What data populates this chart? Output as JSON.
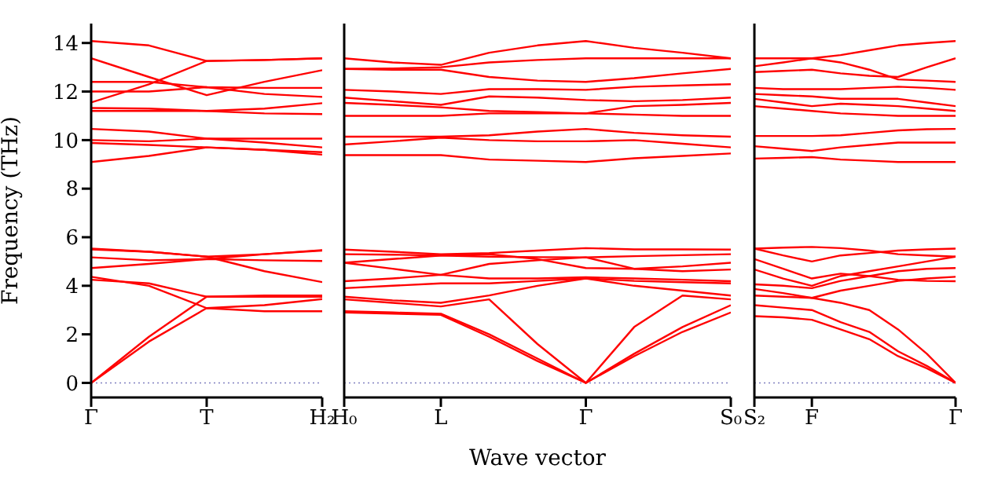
{
  "chart_data": [
    {
      "type": "line",
      "ylabel": "Frequency (THz)",
      "marker": "none",
      "line_style": "solid",
      "categories": [
        "Γ",
        null,
        "T",
        null,
        "H₂"
      ],
      "ylim": [
        -0.6,
        14.8
      ],
      "yticks": [
        0,
        2,
        4,
        6,
        8,
        10,
        12,
        14
      ],
      "ref_lines": [
        {
          "axis": "y",
          "value": 0,
          "color": "#8080c0",
          "line_style": "dotted"
        }
      ],
      "series": [
        {
          "color": "#ff0000",
          "values": [
            0,
            1.7,
            3.08,
            2.95,
            2.95
          ]
        },
        {
          "color": "#ff0000",
          "values": [
            0,
            1.9,
            3.55,
            3.55,
            3.55
          ]
        },
        {
          "color": "#ff0000",
          "values": [
            4.37,
            4.0,
            3.08,
            3.2,
            3.45
          ]
        },
        {
          "color": "#ff0000",
          "values": [
            4.25,
            4.1,
            3.55,
            3.6,
            3.6
          ]
        },
        {
          "color": "#ff0000",
          "values": [
            4.73,
            4.9,
            5.1,
            5.3,
            5.47
          ]
        },
        {
          "color": "#ff0000",
          "values": [
            5.17,
            5.05,
            5.1,
            5.05,
            5.02
          ]
        },
        {
          "color": "#ff0000",
          "values": [
            5.53,
            5.4,
            5.2,
            4.6,
            4.15
          ]
        },
        {
          "color": "#ff0000",
          "values": [
            5.5,
            5.4,
            5.2,
            5.3,
            5.45
          ]
        },
        {
          "color": "#ff0000",
          "values": [
            9.1,
            9.35,
            9.7,
            9.6,
            9.5
          ]
        },
        {
          "color": "#ff0000",
          "values": [
            9.88,
            9.8,
            9.7,
            9.6,
            9.4
          ]
        },
        {
          "color": "#ff0000",
          "values": [
            10.0,
            9.95,
            10.06,
            10.06,
            10.06
          ]
        },
        {
          "color": "#ff0000",
          "values": [
            10.46,
            10.35,
            10.06,
            9.9,
            9.7
          ]
        },
        {
          "color": "#ff0000",
          "values": [
            14.08,
            13.9,
            13.26,
            13.3,
            13.37
          ]
        },
        {
          "color": "#ff0000",
          "values": [
            13.37,
            12.6,
            11.85,
            12.4,
            12.88
          ]
        },
        {
          "color": "#ff0000",
          "values": [
            11.55,
            12.3,
            13.26,
            13.3,
            13.37
          ]
        },
        {
          "color": "#ff0000",
          "values": [
            12.4,
            12.4,
            12.18,
            12.15,
            12.15
          ]
        },
        {
          "color": "#ff0000",
          "values": [
            12.0,
            12.0,
            12.18,
            11.9,
            11.78
          ]
        },
        {
          "color": "#ff0000",
          "values": [
            11.32,
            11.3,
            11.2,
            11.3,
            11.52
          ]
        },
        {
          "color": "#ff0000",
          "values": [
            11.2,
            11.2,
            11.2,
            11.1,
            11.07
          ]
        }
      ]
    },
    {
      "type": "line",
      "xlabel": "Wave vector",
      "marker": "none",
      "line_style": "solid",
      "tick_labels": "x",
      "categories": [
        "H₀",
        null,
        "L",
        null,
        null,
        "Γ",
        null,
        null,
        "S₀"
      ],
      "ylim": [
        -0.6,
        14.8
      ],
      "yticks": [
        0,
        2,
        4,
        6,
        8,
        10,
        12,
        14
      ],
      "ref_lines": [
        {
          "axis": "y",
          "value": 0,
          "color": "#8080c0",
          "line_style": "dotted"
        }
      ],
      "series": [
        {
          "color": "#ff0000",
          "values": [
            2.9,
            2.85,
            2.8,
            1.9,
            0.9,
            0,
            1.1,
            2.1,
            2.9
          ]
        },
        {
          "color": "#ff0000",
          "values": [
            2.95,
            2.9,
            2.85,
            2.0,
            1.0,
            0,
            1.2,
            2.3,
            3.2
          ]
        },
        {
          "color": "#ff0000",
          "values": [
            3.44,
            3.3,
            3.15,
            3.44,
            1.6,
            0,
            2.3,
            3.6,
            3.44
          ]
        },
        {
          "color": "#ff0000",
          "values": [
            5.49,
            5.4,
            5.3,
            5.35,
            5.45,
            5.55,
            5.5,
            5.5,
            5.49
          ]
        },
        {
          "color": "#ff0000",
          "values": [
            5.3,
            5.28,
            5.25,
            5.2,
            5.18,
            5.17,
            5.22,
            5.26,
            5.3
          ]
        },
        {
          "color": "#ff0000",
          "values": [
            4.95,
            5.1,
            5.25,
            5.3,
            5.1,
            4.73,
            4.7,
            4.8,
            4.95
          ]
        },
        {
          "color": "#ff0000",
          "values": [
            4.95,
            4.7,
            4.45,
            4.9,
            5.05,
            5.17,
            4.7,
            4.6,
            4.67
          ]
        },
        {
          "color": "#ff0000",
          "values": [
            4.19,
            4.3,
            4.45,
            4.3,
            4.3,
            4.35,
            4.3,
            4.25,
            4.19
          ]
        },
        {
          "color": "#ff0000",
          "values": [
            3.9,
            4.0,
            4.1,
            4.1,
            4.2,
            4.3,
            4.2,
            4.15,
            4.1
          ]
        },
        {
          "color": "#ff0000",
          "values": [
            3.55,
            3.4,
            3.3,
            3.6,
            4.0,
            4.3,
            4.0,
            3.8,
            3.6
          ]
        },
        {
          "color": "#ff0000",
          "values": [
            13.37,
            13.2,
            13.1,
            13.6,
            13.9,
            14.08,
            13.8,
            13.6,
            13.37
          ]
        },
        {
          "color": "#ff0000",
          "values": [
            12.93,
            12.95,
            13.0,
            13.2,
            13.3,
            13.37,
            13.37,
            13.37,
            13.37
          ]
        },
        {
          "color": "#ff0000",
          "values": [
            12.93,
            12.9,
            12.9,
            12.6,
            12.45,
            12.4,
            12.55,
            12.75,
            12.93
          ]
        },
        {
          "color": "#ff0000",
          "values": [
            12.07,
            12.0,
            11.9,
            12.1,
            12.1,
            12.07,
            12.2,
            12.25,
            12.3
          ]
        },
        {
          "color": "#ff0000",
          "values": [
            11.75,
            11.6,
            11.45,
            11.8,
            11.75,
            11.65,
            11.6,
            11.65,
            11.75
          ]
        },
        {
          "color": "#ff0000",
          "values": [
            11.53,
            11.45,
            11.35,
            11.2,
            11.15,
            11.1,
            11.4,
            11.45,
            11.53
          ]
        },
        {
          "color": "#ff0000",
          "values": [
            11.0,
            11.0,
            11.0,
            11.1,
            11.1,
            11.1,
            11.05,
            11.0,
            11.0
          ]
        },
        {
          "color": "#ff0000",
          "values": [
            10.14,
            10.14,
            10.14,
            10.2,
            10.35,
            10.46,
            10.3,
            10.2,
            10.14
          ]
        },
        {
          "color": "#ff0000",
          "values": [
            9.82,
            9.95,
            10.1,
            10.0,
            9.95,
            9.95,
            10.0,
            9.85,
            9.7
          ]
        },
        {
          "color": "#ff0000",
          "values": [
            9.38,
            9.38,
            9.38,
            9.2,
            9.15,
            9.1,
            9.25,
            9.35,
            9.45
          ]
        }
      ]
    },
    {
      "type": "line",
      "marker": "none",
      "line_style": "solid",
      "tick_labels": "x",
      "categories": [
        "S₂",
        null,
        "F",
        null,
        null,
        null,
        null,
        "Γ"
      ],
      "ylim": [
        -0.6,
        14.8
      ],
      "yticks": [
        0,
        2,
        4,
        6,
        8,
        10,
        12,
        14
      ],
      "ref_lines": [
        {
          "axis": "y",
          "value": 0,
          "color": "#8080c0",
          "line_style": "dotted"
        }
      ],
      "series": [
        {
          "color": "#ff0000",
          "values": [
            2.75,
            2.7,
            2.6,
            2.2,
            1.8,
            1.1,
            0.6,
            0
          ]
        },
        {
          "color": "#ff0000",
          "values": [
            3.2,
            3.1,
            3.0,
            2.5,
            2.1,
            1.3,
            0.7,
            0
          ]
        },
        {
          "color": "#ff0000",
          "values": [
            3.6,
            3.55,
            3.5,
            3.3,
            3.0,
            2.2,
            1.2,
            0
          ]
        },
        {
          "color": "#ff0000",
          "values": [
            3.87,
            3.7,
            3.5,
            3.8,
            4.0,
            4.2,
            4.3,
            4.37
          ]
        },
        {
          "color": "#ff0000",
          "values": [
            4.06,
            4.0,
            3.9,
            4.2,
            4.4,
            4.6,
            4.7,
            4.73
          ]
        },
        {
          "color": "#ff0000",
          "values": [
            4.67,
            4.3,
            4.0,
            4.4,
            4.6,
            4.8,
            5.0,
            5.2
          ]
        },
        {
          "color": "#ff0000",
          "values": [
            5.1,
            4.7,
            4.3,
            4.5,
            4.4,
            4.25,
            4.2,
            4.19
          ]
        },
        {
          "color": "#ff0000",
          "values": [
            5.53,
            5.25,
            5.0,
            5.25,
            5.35,
            5.45,
            5.5,
            5.53
          ]
        },
        {
          "color": "#ff0000",
          "values": [
            5.53,
            5.57,
            5.6,
            5.55,
            5.45,
            5.3,
            5.25,
            5.2
          ]
        },
        {
          "color": "#ff0000",
          "values": [
            13.37,
            13.37,
            13.37,
            13.5,
            13.7,
            13.9,
            14.0,
            14.08
          ]
        },
        {
          "color": "#ff0000",
          "values": [
            13.04,
            13.2,
            13.37,
            13.2,
            12.9,
            12.5,
            12.45,
            12.4
          ]
        },
        {
          "color": "#ff0000",
          "values": [
            12.8,
            12.85,
            12.9,
            12.75,
            12.65,
            12.6,
            13.0,
            13.37
          ]
        },
        {
          "color": "#ff0000",
          "values": [
            12.15,
            12.1,
            12.1,
            12.1,
            12.15,
            12.2,
            12.15,
            12.07
          ]
        },
        {
          "color": "#ff0000",
          "values": [
            11.9,
            11.85,
            11.8,
            11.7,
            11.7,
            11.7,
            11.55,
            11.4
          ]
        },
        {
          "color": "#ff0000",
          "values": [
            11.7,
            11.55,
            11.4,
            11.5,
            11.45,
            11.4,
            11.3,
            11.2
          ]
        },
        {
          "color": "#ff0000",
          "values": [
            11.4,
            11.3,
            11.2,
            11.1,
            11.05,
            11.0,
            11.0,
            11.0
          ]
        },
        {
          "color": "#ff0000",
          "values": [
            10.17,
            10.17,
            10.17,
            10.2,
            10.3,
            10.4,
            10.45,
            10.46
          ]
        },
        {
          "color": "#ff0000",
          "values": [
            9.75,
            9.65,
            9.55,
            9.7,
            9.8,
            9.9,
            9.9,
            9.9
          ]
        },
        {
          "color": "#ff0000",
          "values": [
            9.24,
            9.27,
            9.3,
            9.2,
            9.15,
            9.1,
            9.1,
            9.1
          ]
        }
      ]
    }
  ]
}
